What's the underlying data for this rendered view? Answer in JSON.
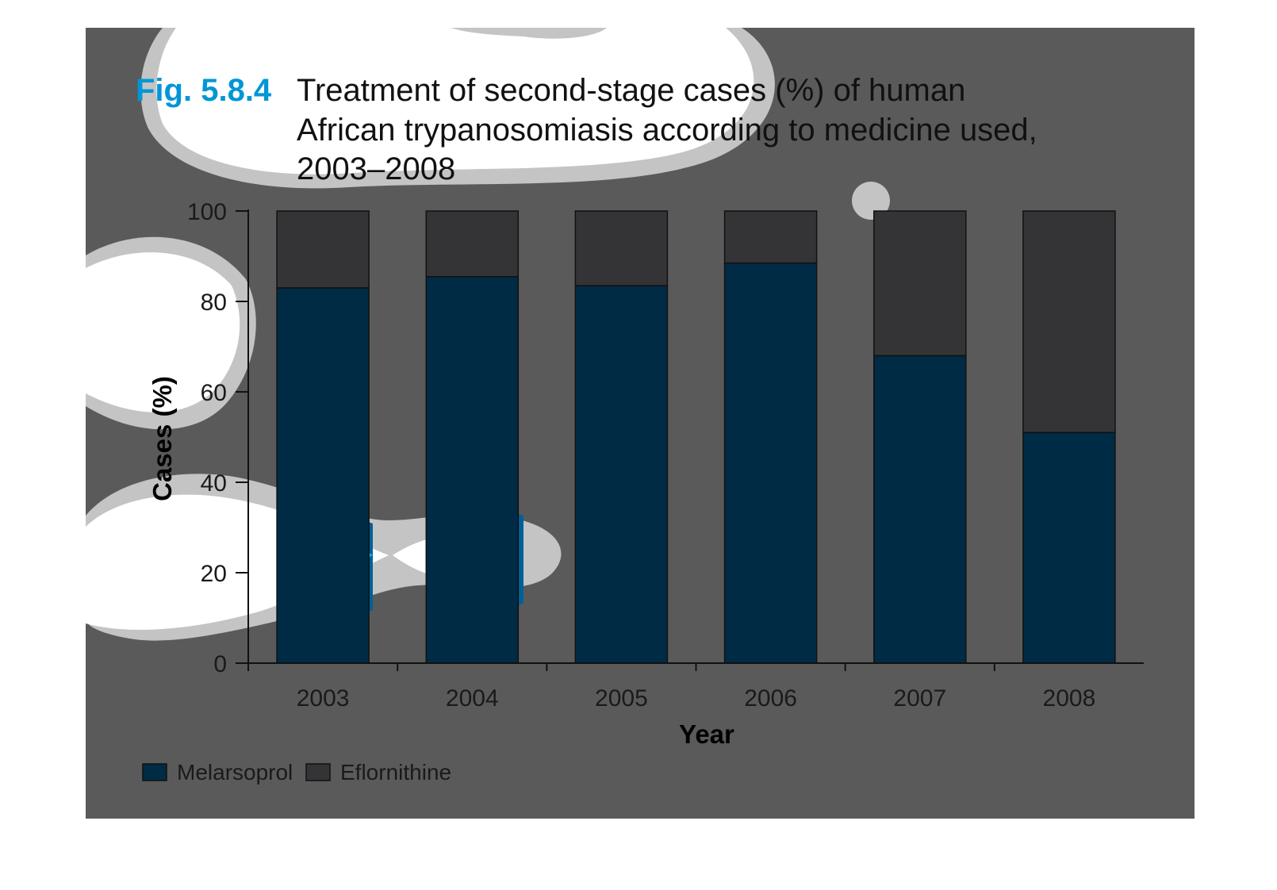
{
  "figure": {
    "label": "Fig. 5.8.4",
    "title_lines": [
      "Treatment of second-stage cases (%) of human",
      "African trypanosomiasis according to medicine used,",
      "2003–2008"
    ]
  },
  "colors": {
    "background_panel": "#5a5a5a",
    "page": "#ffffff",
    "melarsoprol": "#002b45",
    "eflornithine": "#343437",
    "fig_label": "#0096d6",
    "blob_white": "#ffffff",
    "blob_gray": "#c4c4c4",
    "blob_cyan": "#00b6f0",
    "blob_blue": "#006096"
  },
  "chart_data": {
    "type": "bar",
    "stacked": true,
    "categories": [
      "2003",
      "2004",
      "2005",
      "2006",
      "2007",
      "2008"
    ],
    "series": [
      {
        "name": "Melarsoprol",
        "values": [
          83,
          85.5,
          83.5,
          88.5,
          68,
          51
        ]
      },
      {
        "name": "Eflornithine",
        "values": [
          17,
          14.5,
          16.5,
          11.5,
          32,
          49
        ]
      }
    ],
    "xlabel": "Year",
    "ylabel": "Cases (%)",
    "ylim": [
      0,
      100
    ],
    "yticks": [
      0,
      20,
      40,
      60,
      80,
      100
    ],
    "grid": false,
    "legend_position": "bottom-left"
  }
}
